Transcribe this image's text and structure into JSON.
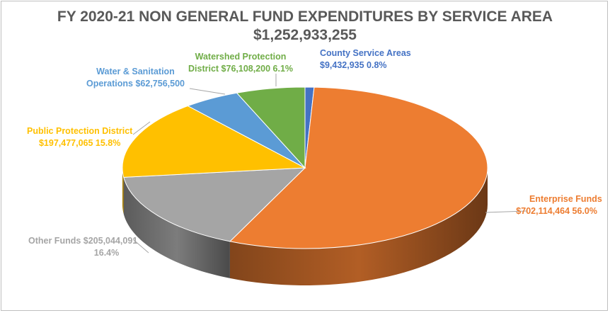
{
  "chart_data": {
    "type": "pie",
    "title": "FY 2020-21 NON GENERAL FUND EXPENDITURES BY SERVICE AREA",
    "subtitle": "$1,252,933,255",
    "slices": [
      {
        "name": "County Service Areas",
        "amount": "$9,432,935",
        "percent": "0.8%",
        "value": 0.8,
        "color": "#4472c4"
      },
      {
        "name": "Enterprise Funds",
        "amount": "$702,114,464",
        "percent": "56.0%",
        "value": 56.0,
        "color": "#ed7d31"
      },
      {
        "name": "Other Funds",
        "amount": "$205,044,091",
        "percent": "16.4%",
        "value": 16.4,
        "color": "#a5a5a5"
      },
      {
        "name": "Public Protection District",
        "amount": "$197,477,065",
        "percent": "15.8%",
        "value": 15.8,
        "color": "#ffc000"
      },
      {
        "name": "Water & Sanitation Operations",
        "amount": "$62,756,500",
        "percent": "",
        "value": 5.0,
        "color": "#5b9bd5"
      },
      {
        "name": "Watershed Protection District",
        "amount": "$76,108,200",
        "percent": "6.1%",
        "value": 6.1,
        "color": "#70ad47"
      }
    ],
    "labels": {
      "county_line1": "County Service Areas",
      "county_line2": "$9,432,935  0.8%",
      "enterprise_line1": "Enterprise Funds",
      "enterprise_line2": "$702,114,464  56.0%",
      "other_line1": "Other Funds  $205,044,091",
      "other_line2": "16.4%",
      "ppd_line1": "Public Protection District",
      "ppd_line2": "$197,477,065  15.8%",
      "water_line1": "Water & Sanitation",
      "water_line2": "Operations  $62,756,500",
      "watershed_line1": "Watershed Protection",
      "watershed_line2": "District  $76,108,200  6.1%"
    }
  }
}
